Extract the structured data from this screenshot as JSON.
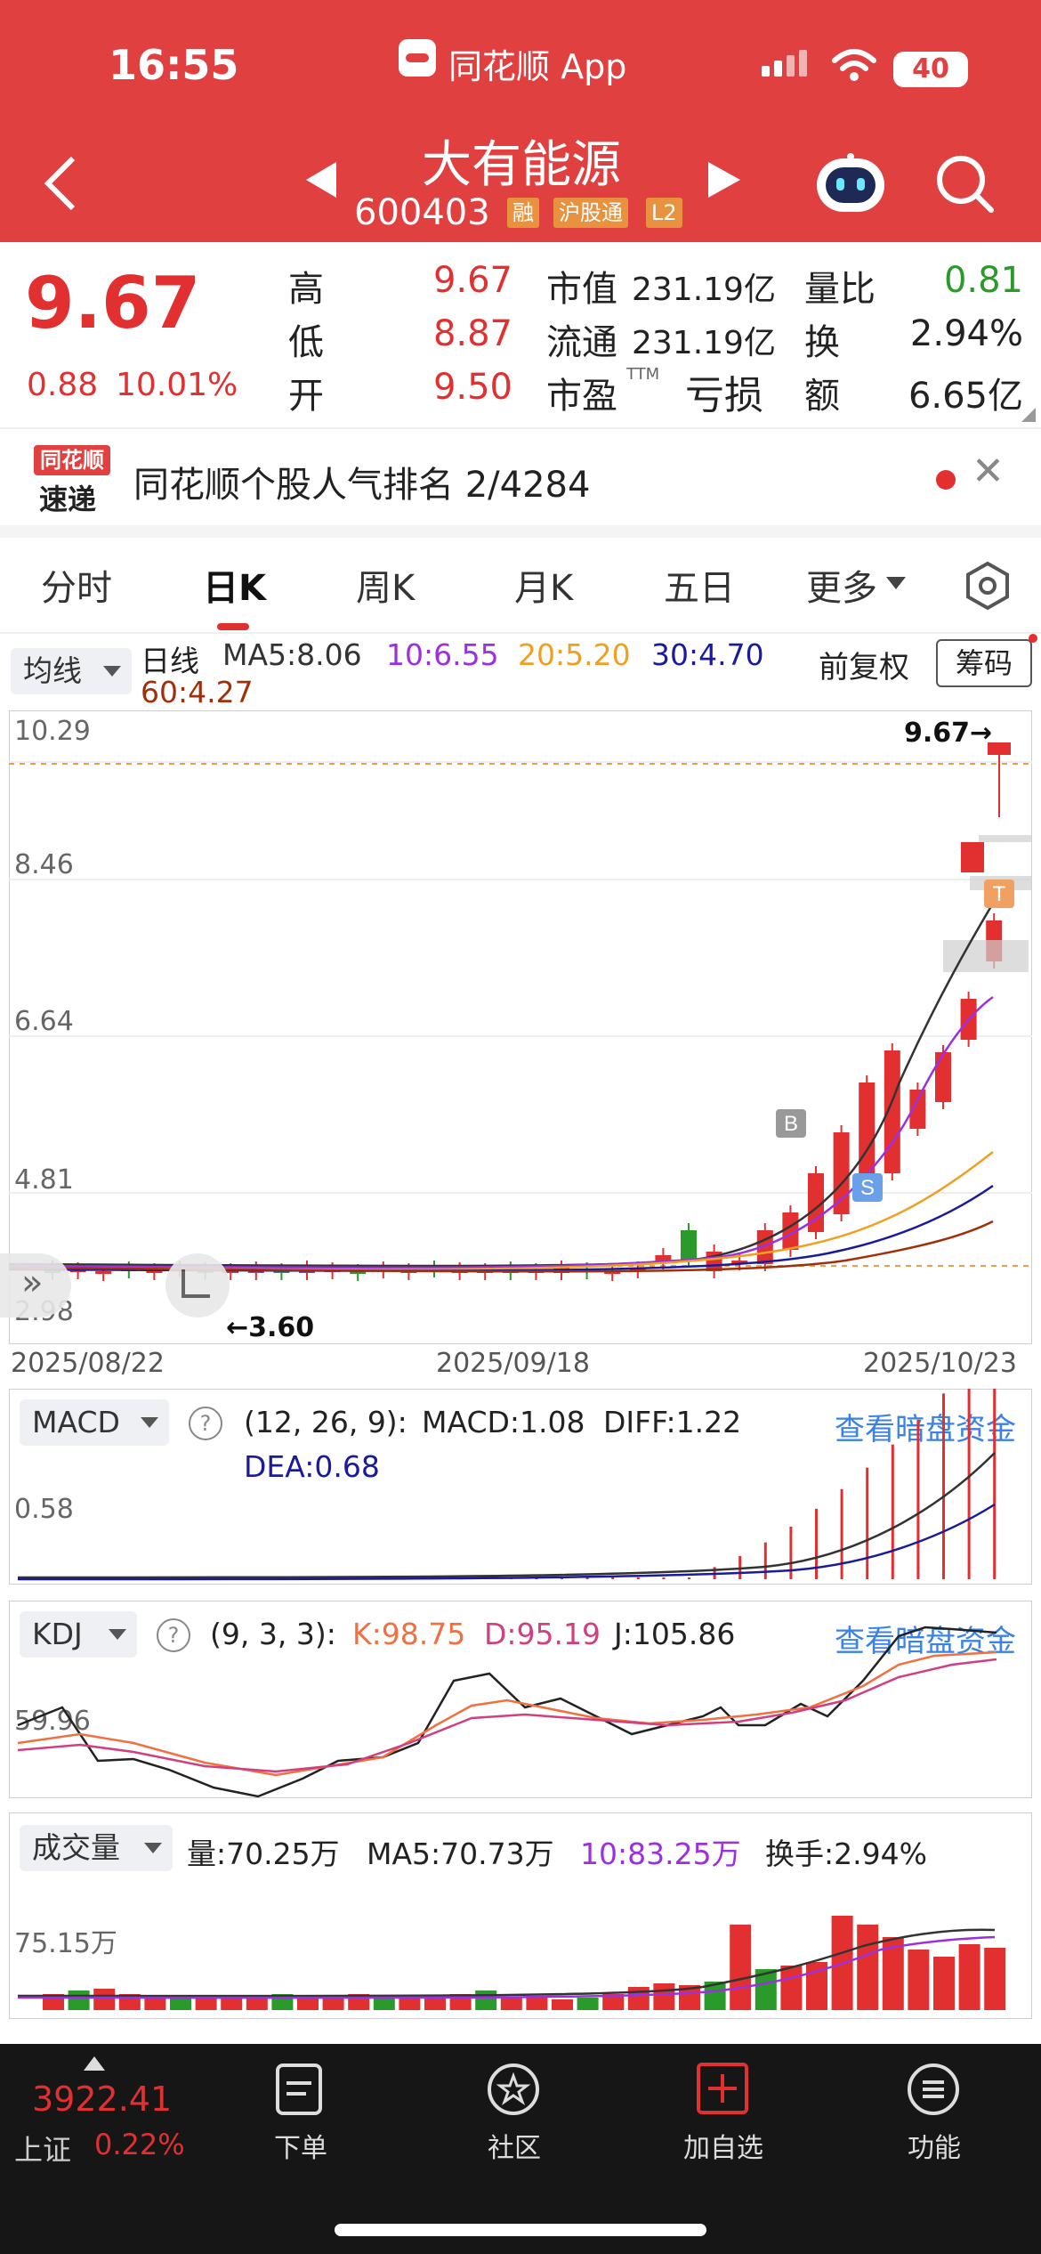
{
  "status_bar": {
    "time": "16:55",
    "app_name": "同花顺 App",
    "battery": "40"
  },
  "stock": {
    "name": "大有能源",
    "code": "600403",
    "tags": [
      "融",
      "沪股通",
      "L2"
    ]
  },
  "quote": {
    "price": "9.67",
    "change": "0.88",
    "change_pct": "10.01%",
    "high_label": "高",
    "high": "9.67",
    "low_label": "低",
    "low": "8.87",
    "open_label": "开",
    "open": "9.50",
    "mkt_cap_label": "市值",
    "mkt_cap": "231.19亿",
    "float_label": "流通",
    "float_cap": "231.19亿",
    "pe_label": "市盈",
    "pe_sup": "TTM",
    "pe": "亏损",
    "vol_ratio_label": "量比",
    "vol_ratio": "0.81",
    "turnover_label": "换",
    "turnover": "2.94%",
    "amount_label": "额",
    "amount": "6.65亿"
  },
  "ranking": {
    "logo_top": "同花顺",
    "logo_bottom": "速递",
    "text": "同花顺个股人气排名 2/4284"
  },
  "tabs": {
    "items": [
      "分时",
      "日K",
      "周K",
      "月K",
      "五日",
      "更多"
    ],
    "active": "日K"
  },
  "kline": {
    "selector": "均线",
    "period_label": "日线",
    "ma5": "MA5:8.06",
    "ma10": "10:6.55",
    "ma20": "20:5.20",
    "ma30": "30:4.70",
    "ma60": "60:4.27",
    "adjust": "前复权",
    "chips": "筹码",
    "y_labels": [
      "10.29",
      "8.46",
      "6.64",
      "4.81",
      "2.98"
    ],
    "last_price_marker": "9.67→",
    "low_marker": "←3.60",
    "dates": [
      "2025/08/22",
      "2025/09/18",
      "2025/10/23"
    ],
    "signal_b": "B",
    "signal_s": "S",
    "signal_t": "T"
  },
  "macd": {
    "selector": "MACD",
    "params": "(12, 26, 9):",
    "macd": "MACD:1.08",
    "diff": "DIFF:1.22",
    "dea": "DEA:0.68",
    "y_label": "0.58",
    "link": "查看暗盘资金"
  },
  "kdj": {
    "selector": "KDJ",
    "params": "(9, 3, 3):",
    "k": "K:98.75",
    "d": "D:95.19",
    "j": "J:105.86",
    "y_label": "59.96",
    "link": "查看暗盘资金"
  },
  "volume": {
    "selector": "成交量",
    "vol": "量:70.25万",
    "ma5": "MA5:70.73万",
    "ma10": "10:83.25万",
    "turnover": "换手:2.94%",
    "y_label": "75.15万"
  },
  "bottom_bar": {
    "index_value": "3922.41",
    "index_name": "上证",
    "index_change": "0.22%",
    "nav": [
      "下单",
      "社区",
      "加自选",
      "功能"
    ]
  },
  "colors": {
    "header": "#e04040",
    "up": "#e23030",
    "down": "#2a9a2a",
    "link": "#3b82e6"
  }
}
